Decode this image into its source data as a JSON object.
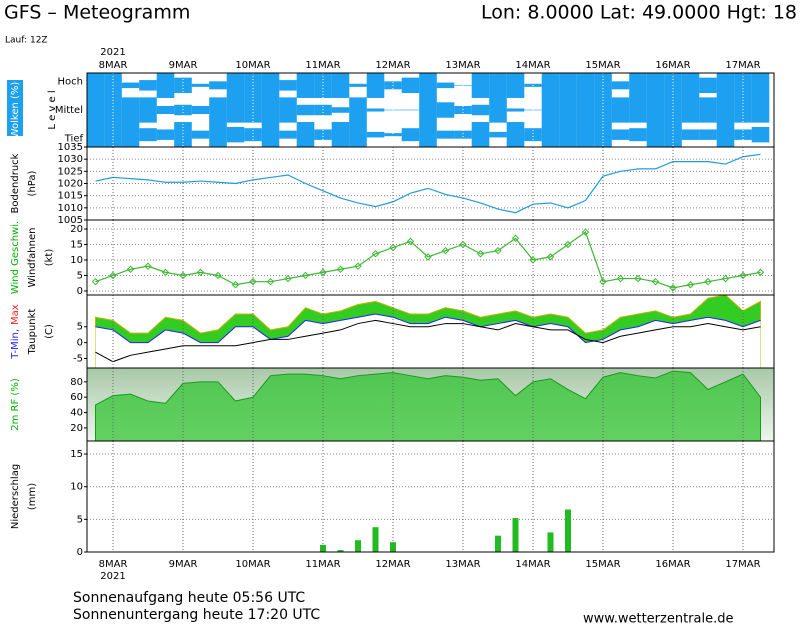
{
  "header": {
    "title": "GFS – Meteogramm",
    "location": "Lon: 8.0000  Lat: 49.0000  Hgt: 18",
    "run": "Lauf: 12Z"
  },
  "x_axis": {
    "year": "2021",
    "categories": [
      null,
      "8MAR",
      null,
      null,
      null,
      "9MAR",
      null,
      null,
      null,
      "10MAR",
      null,
      null,
      null,
      "11MAR",
      null,
      null,
      null,
      "12MAR",
      null,
      null,
      null,
      "13MAR",
      null,
      null,
      null,
      "14MAR",
      null,
      null,
      null,
      "15MAR",
      null,
      null,
      null,
      "16MAR",
      null,
      null,
      null,
      "17MAR",
      null
    ]
  },
  "chart_data": [
    {
      "type": "cloud",
      "ylabel": [
        [
          {
            "text": "Wolken (%)",
            "color": "#ffffff"
          }
        ],
        [
          {
            "text": "L e v e l"
          }
        ]
      ],
      "color": "#1ea0f0",
      "ylim": [
        0,
        100
      ],
      "series": [
        {
          "name": "Hoch",
          "values": [
            100,
            100,
            20,
            40,
            100,
            60,
            10,
            30,
            100,
            100,
            100,
            40,
            100,
            100,
            100,
            10,
            100,
            30,
            60,
            100,
            20,
            0,
            100,
            100,
            100,
            10,
            100,
            100,
            100,
            100,
            30,
            100,
            100,
            100,
            100,
            60,
            100,
            100,
            100
          ]
        },
        {
          "name": "Mittel",
          "values": [
            100,
            100,
            100,
            100,
            30,
            40,
            30,
            100,
            100,
            100,
            100,
            100,
            40,
            40,
            20,
            100,
            10,
            0,
            0,
            100,
            60,
            30,
            40,
            100,
            10,
            0,
            100,
            100,
            100,
            100,
            100,
            100,
            100,
            100,
            100,
            100,
            100,
            100,
            100
          ]
        },
        {
          "name": "Tief",
          "values": [
            100,
            100,
            100,
            50,
            40,
            100,
            30,
            100,
            60,
            50,
            100,
            30,
            100,
            40,
            100,
            100,
            20,
            10,
            50,
            100,
            30,
            30,
            100,
            20,
            100,
            50,
            100,
            100,
            100,
            100,
            40,
            50,
            100,
            100,
            40,
            40,
            100,
            40,
            60
          ]
        }
      ]
    },
    {
      "type": "line",
      "ylabel": [
        [
          {
            "text": "Bodendruck"
          }
        ],
        [
          {
            "text": "(hPa)"
          }
        ]
      ],
      "ylim": [
        1005,
        1035
      ],
      "yticks": [
        1005,
        1010,
        1015,
        1020,
        1025,
        1030,
        1035
      ],
      "grid": true,
      "series": [
        {
          "color": "#1e9be0",
          "values": [
            1021,
            1022.5,
            1022,
            1021.5,
            1020.5,
            1020.5,
            1021,
            1020.5,
            1020,
            1021.5,
            1022.5,
            1023.5,
            1020,
            1017,
            1014,
            1012,
            1010.5,
            1012.5,
            1016,
            1018,
            1015.5,
            1014,
            1012,
            1009.5,
            1008,
            1011.5,
            1012,
            1010,
            1013,
            1023,
            1025,
            1026,
            1026,
            1029,
            1029,
            1029,
            1028,
            1031,
            1032
          ]
        }
      ]
    },
    {
      "type": "line",
      "markers": true,
      "ylabel": [
        [
          {
            "text": "Wind Geschwi.",
            "color": "#00b000"
          }
        ],
        [
          {
            "text": "Windfahnen"
          }
        ],
        [
          {
            "text": "(kt)"
          }
        ]
      ],
      "ylim": [
        -1.3,
        22.9
      ],
      "yticks": [
        0,
        5,
        10,
        15,
        20
      ],
      "grid": true,
      "series": [
        {
          "color": "#3cb832",
          "values": [
            3,
            5,
            7,
            8,
            6,
            5,
            6,
            5,
            2,
            3,
            3,
            4,
            5,
            6,
            7,
            8,
            12,
            14,
            16,
            11,
            13,
            15,
            12,
            13,
            17,
            10,
            11,
            15,
            19,
            3,
            4,
            4,
            3,
            1,
            2,
            3,
            4,
            5,
            6
          ]
        }
      ]
    },
    {
      "type": "temperature",
      "ylabel": [
        [
          {
            "text": "T-Min,",
            "color": "#2020ff"
          },
          {
            "text": "Max",
            "color": "#ff2020"
          }
        ],
        [
          {
            "text": "Taupunkt"
          }
        ],
        [
          {
            "text": "(C)"
          }
        ]
      ],
      "ylim": [
        -8,
        15
      ],
      "yticks": [
        -5,
        0,
        5
      ],
      "series": [
        {
          "color": "#33cc22",
          "values": [
            8,
            7,
            3,
            3,
            8,
            7,
            3,
            4,
            9,
            9,
            4,
            5,
            11,
            9,
            10,
            12,
            13,
            11,
            9,
            9,
            11,
            10,
            8,
            9,
            10,
            8,
            9,
            8,
            3,
            4,
            8,
            9,
            10,
            8,
            9,
            14,
            15,
            10,
            13
          ]
        },
        {
          "color": "#2020ff",
          "values": [
            5,
            4,
            0,
            0,
            4,
            3,
            0,
            0,
            5,
            5,
            1,
            2,
            7,
            6,
            7,
            8,
            9,
            8,
            6,
            6,
            8,
            7,
            5,
            6,
            7,
            5,
            6,
            5,
            0,
            1,
            4,
            5,
            7,
            6,
            7,
            8,
            7,
            5,
            7
          ]
        },
        {
          "color": "#000000",
          "values": [
            -3,
            -6,
            -4,
            -3,
            -2,
            -1,
            -1,
            -1,
            -1,
            0,
            1,
            1,
            2,
            3,
            4,
            6,
            7,
            6,
            5,
            5,
            6,
            6,
            5,
            4,
            6,
            5,
            4,
            4,
            1,
            0,
            2,
            3,
            4,
            5,
            5,
            6,
            5,
            4,
            5
          ]
        }
      ]
    },
    {
      "type": "area",
      "ylabel": [
        [
          {
            "text": "2m RF (%)",
            "color": "#00b000"
          }
        ]
      ],
      "ylim": [
        3,
        98
      ],
      "yticks": [
        20,
        40,
        60,
        80
      ],
      "series": [
        {
          "color": "#33c433",
          "values": [
            50,
            62,
            64,
            55,
            52,
            78,
            80,
            80,
            55,
            60,
            88,
            90,
            90,
            88,
            84,
            88,
            90,
            92,
            88,
            84,
            88,
            86,
            82,
            84,
            62,
            80,
            84,
            70,
            58,
            86,
            92,
            88,
            85,
            94,
            92,
            70,
            80,
            90,
            60
          ]
        }
      ]
    },
    {
      "type": "bar",
      "ylabel": [
        [
          {
            "text": "Niederschlag"
          }
        ],
        [
          {
            "text": "(mm)"
          }
        ]
      ],
      "ylim": [
        0,
        17
      ],
      "yticks": [
        0,
        5,
        10,
        15
      ],
      "grid": true,
      "series": [
        {
          "color": "#22bb22",
          "values": [
            0,
            0,
            0,
            0,
            0,
            0,
            0,
            0,
            0,
            0,
            0,
            0,
            0,
            1.1,
            0.3,
            1.8,
            3.8,
            1.5,
            0,
            0,
            0,
            0,
            0,
            2.5,
            5.2,
            0,
            3,
            6.5,
            0,
            0,
            0,
            0,
            0,
            0,
            0,
            0,
            0,
            0,
            0
          ]
        }
      ]
    }
  ],
  "footer": {
    "sunrise": "Sonnenaufgang heute 05:56 UTC",
    "sunset": "Sonnenuntergang heute 17:20 UTC",
    "source": "www.wetterzentrale.de"
  }
}
